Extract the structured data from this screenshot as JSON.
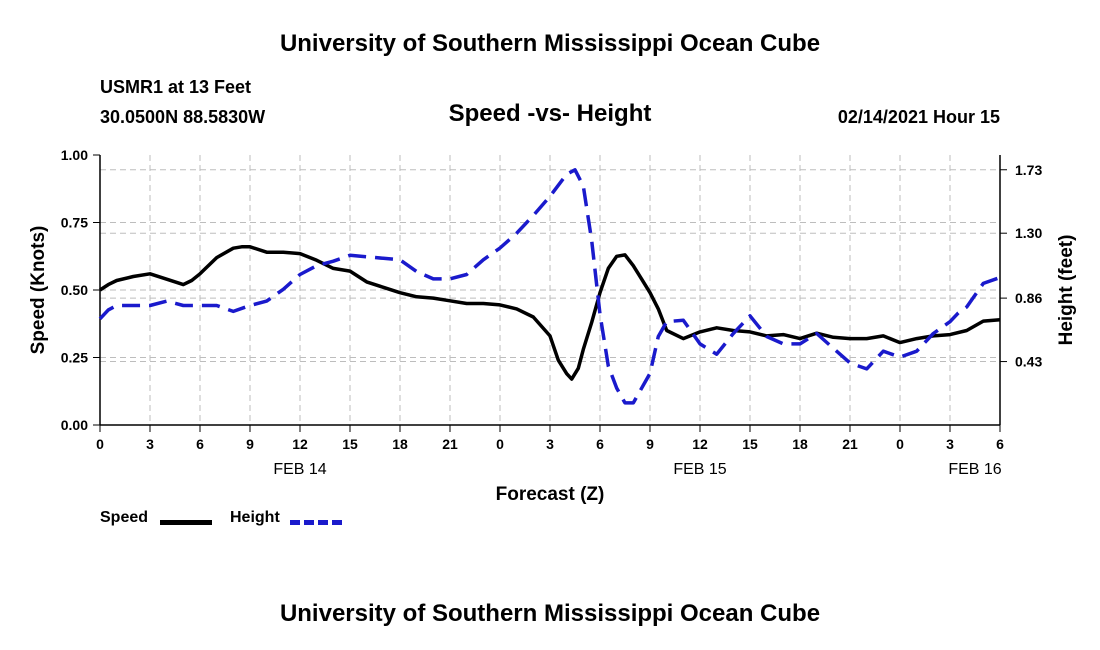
{
  "header": {
    "top_title": "University of Southern Mississippi Ocean Cube",
    "bottom_title": "University of Southern Mississippi Ocean Cube",
    "station": "USMR1 at 13 Feet",
    "coords": "30.0500N 88.5830W",
    "subtitle": "Speed -vs- Height",
    "datetime": "02/14/2021 Hour 15"
  },
  "legend": {
    "speed_label": "Speed",
    "height_label": "Height"
  },
  "colors": {
    "speed": "#000000",
    "height": "#1a1acc",
    "grid": "#bdbdbd"
  },
  "chart_data": {
    "type": "line",
    "title": "Speed -vs- Height",
    "xlabel": "Forecast (Z)",
    "ylabel": "Speed (Knots)",
    "y2label": "Height (feet)",
    "xlim": [
      0,
      54
    ],
    "ylim": [
      0,
      1.0
    ],
    "y2lim": [
      0.0,
      1.83
    ],
    "x_ticks": [
      0,
      3,
      6,
      9,
      12,
      15,
      18,
      21,
      24,
      27,
      30,
      33,
      36,
      39,
      42,
      45,
      48,
      51,
      54
    ],
    "x_tick_labels": [
      "0",
      "3",
      "6",
      "9",
      "12",
      "15",
      "18",
      "21",
      "0",
      "3",
      "6",
      "9",
      "12",
      "15",
      "18",
      "21",
      "0",
      "3",
      "6"
    ],
    "y_ticks": [
      0.0,
      0.25,
      0.5,
      0.75,
      1.0
    ],
    "y_tick_labels": [
      "0.00",
      "0.25",
      "0.50",
      "0.75",
      "1.00"
    ],
    "y2_ticks": [
      0.43,
      0.86,
      1.3,
      1.73
    ],
    "y2_tick_labels": [
      "0.43",
      "0.86",
      "1.30",
      "1.73"
    ],
    "date_labels": [
      {
        "x": 12,
        "label": "FEB 14"
      },
      {
        "x": 36,
        "label": "FEB 15"
      },
      {
        "x": 52.5,
        "label": "FEB 16"
      }
    ],
    "series": [
      {
        "name": "Speed",
        "axis": "left",
        "style": "solid",
        "x": [
          0,
          0.5,
          1,
          2,
          3,
          4,
          5,
          5.5,
          6,
          7,
          8,
          8.5,
          9,
          10,
          11,
          12,
          13,
          14,
          15,
          16,
          17,
          18,
          19,
          20,
          21,
          22,
          23,
          24,
          25,
          26,
          27,
          27.5,
          28,
          28.3,
          28.7,
          29,
          29.5,
          30,
          30.5,
          31,
          31.5,
          32,
          32.5,
          33,
          33.5,
          34,
          35,
          36,
          37,
          38,
          39,
          40,
          41,
          42,
          43,
          44,
          45,
          46,
          47,
          48,
          49,
          50,
          51,
          52,
          53,
          54
        ],
        "values": [
          0.5,
          0.52,
          0.535,
          0.55,
          0.56,
          0.54,
          0.52,
          0.535,
          0.56,
          0.62,
          0.655,
          0.66,
          0.66,
          0.64,
          0.64,
          0.635,
          0.61,
          0.58,
          0.57,
          0.53,
          0.51,
          0.49,
          0.475,
          0.47,
          0.46,
          0.45,
          0.45,
          0.445,
          0.43,
          0.4,
          0.33,
          0.24,
          0.19,
          0.17,
          0.21,
          0.28,
          0.38,
          0.49,
          0.58,
          0.625,
          0.63,
          0.59,
          0.54,
          0.49,
          0.43,
          0.35,
          0.32,
          0.345,
          0.36,
          0.35,
          0.345,
          0.33,
          0.335,
          0.32,
          0.34,
          0.325,
          0.32,
          0.32,
          0.33,
          0.305,
          0.32,
          0.33,
          0.335,
          0.35,
          0.385,
          0.39
        ]
      },
      {
        "name": "Height",
        "axis": "right",
        "style": "dashed",
        "x": [
          0,
          0.5,
          1,
          2,
          3,
          4,
          5,
          6,
          7,
          8,
          9,
          10,
          11,
          12,
          13,
          14,
          15,
          16,
          17,
          18,
          19,
          20,
          21,
          22,
          23,
          24,
          25,
          26,
          27,
          28,
          28.5,
          29,
          29.5,
          30,
          30.5,
          31,
          31.5,
          32,
          33,
          33.5,
          34,
          35,
          36,
          37,
          38,
          39,
          40,
          41,
          42,
          43,
          44,
          45,
          46,
          47,
          48,
          49,
          50,
          51,
          51.5,
          52,
          53,
          54
        ],
        "values": [
          0.72,
          0.78,
          0.81,
          0.81,
          0.81,
          0.84,
          0.81,
          0.81,
          0.81,
          0.77,
          0.81,
          0.84,
          0.92,
          1.02,
          1.08,
          1.11,
          1.15,
          1.14,
          1.13,
          1.12,
          1.04,
          0.99,
          0.99,
          1.02,
          1.12,
          1.2,
          1.3,
          1.42,
          1.55,
          1.7,
          1.73,
          1.62,
          1.25,
          0.75,
          0.4,
          0.25,
          0.15,
          0.15,
          0.35,
          0.6,
          0.7,
          0.71,
          0.55,
          0.48,
          0.62,
          0.74,
          0.6,
          0.55,
          0.55,
          0.62,
          0.52,
          0.42,
          0.38,
          0.5,
          0.46,
          0.5,
          0.62,
          0.7,
          0.76,
          0.8,
          0.96,
          1.0
        ]
      }
    ]
  }
}
